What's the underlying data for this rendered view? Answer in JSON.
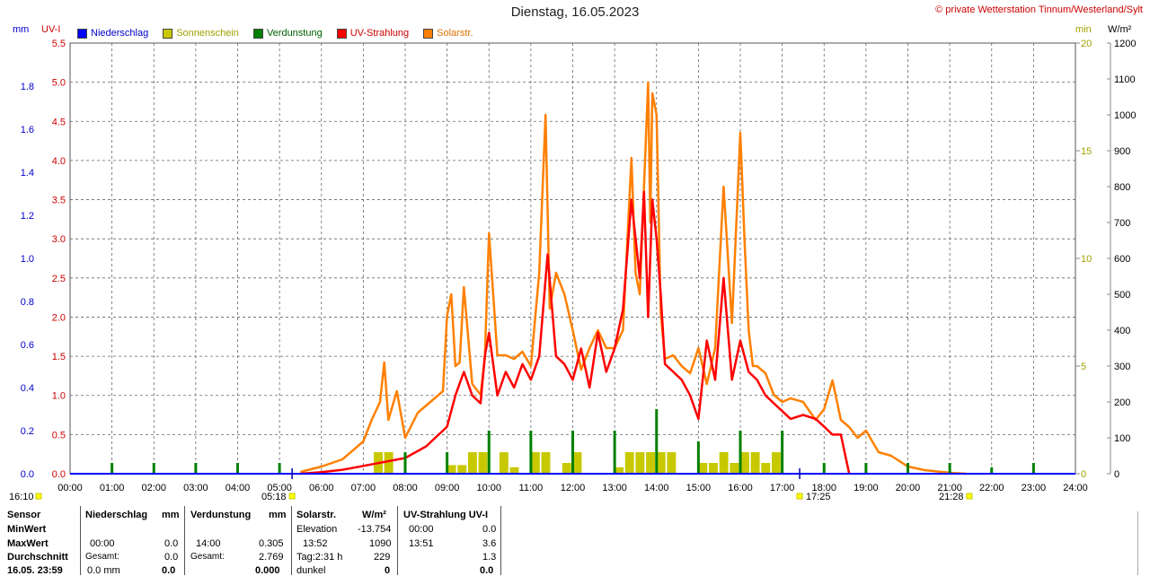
{
  "header": {
    "title": "Dienstag, 16.05.2023",
    "copyright": "© private Wetterstation Tinnum/Westerland/Sylt",
    "unit_mm": "mm",
    "unit_uvi": "UV-I",
    "unit_min": "min",
    "unit_wm2": "W/m²"
  },
  "legend": [
    {
      "label": "Niederschlag",
      "color": "#0000ff"
    },
    {
      "label": "Sonnenschein",
      "color": "#c8c800"
    },
    {
      "label": "Verdunstung",
      "color": "#008000"
    },
    {
      "label": "UV-Strahlung",
      "color": "#ff0000"
    },
    {
      "label": "Solarstr.",
      "color": "#ff8000"
    }
  ],
  "markers": {
    "start_time": "16:10",
    "sunrise": "05:18",
    "sunset": "17:25",
    "dusk_end": "21:28"
  },
  "chart_data": {
    "type": "line",
    "title": "Dienstag, 16.05.2023",
    "xlim": [
      "00:00",
      "24:00"
    ],
    "x_ticks": [
      "00:00",
      "01:00",
      "02:00",
      "03:00",
      "04:00",
      "05:00",
      "06:00",
      "07:00",
      "08:00",
      "09:00",
      "10:00",
      "11:00",
      "12:00",
      "13:00",
      "14:00",
      "15:00",
      "16:00",
      "17:00",
      "18:00",
      "19:00",
      "20:00",
      "21:00",
      "22:00",
      "23:00",
      "24:00"
    ],
    "axes": {
      "mm": {
        "label": "mm",
        "ylim": [
          0,
          2.0
        ],
        "ticks": [
          "0.0",
          "0.2",
          "0.4",
          "0.6",
          "0.8",
          "1.0",
          "1.2",
          "1.4",
          "1.6",
          "1.8"
        ],
        "color": "#0000cc"
      },
      "uvi": {
        "label": "UV-I",
        "ylim": [
          0,
          5.5
        ],
        "ticks": [
          "0.0",
          "0.5",
          "1.0",
          "1.5",
          "2.0",
          "2.5",
          "3.0",
          "3.5",
          "4.0",
          "4.5",
          "5.0",
          "5.5"
        ],
        "color": "#cc0000"
      },
      "min": {
        "label": "min",
        "ylim": [
          0,
          20
        ],
        "ticks": [
          "0",
          "5",
          "10",
          "15",
          "20"
        ],
        "color": "#a0a000"
      },
      "wm2": {
        "label": "W/m²",
        "ylim": [
          0,
          1200
        ],
        "ticks": [
          "0",
          "100",
          "200",
          "300",
          "400",
          "500",
          "600",
          "700",
          "800",
          "900",
          "1000",
          "1100",
          "1200"
        ],
        "color": "#000000"
      }
    },
    "series": [
      {
        "name": "Solarstr.",
        "axis": "wm2",
        "color": "#ff8000",
        "x": [
          5.5,
          6.0,
          6.5,
          7.0,
          7.2,
          7.4,
          7.5,
          7.6,
          7.8,
          8.0,
          8.3,
          8.6,
          8.9,
          9.0,
          9.1,
          9.2,
          9.3,
          9.4,
          9.6,
          9.8,
          9.9,
          10.0,
          10.2,
          10.4,
          10.6,
          10.8,
          11.0,
          11.2,
          11.35,
          11.45,
          11.6,
          11.8,
          12.0,
          12.2,
          12.4,
          12.6,
          12.8,
          13.0,
          13.2,
          13.4,
          13.5,
          13.6,
          13.8,
          13.85,
          13.9,
          14.0,
          14.1,
          14.2,
          14.4,
          14.6,
          14.8,
          15.0,
          15.2,
          15.4,
          15.6,
          15.8,
          16.0,
          16.1,
          16.2,
          16.3,
          16.4,
          16.6,
          16.8,
          17.0,
          17.2,
          17.5,
          17.8,
          18.0,
          18.2,
          18.4,
          18.6,
          18.8,
          19.0,
          19.3,
          19.6,
          20.0,
          20.4,
          20.8,
          21.1,
          21.4
        ],
        "y": [
          5,
          20,
          40,
          90,
          150,
          200,
          310,
          150,
          230,
          100,
          170,
          200,
          230,
          440,
          500,
          300,
          310,
          520,
          250,
          220,
          320,
          670,
          330,
          330,
          320,
          340,
          300,
          560,
          1000,
          460,
          560,
          500,
          400,
          290,
          350,
          400,
          350,
          350,
          400,
          880,
          560,
          500,
          1090,
          700,
          1060,
          1000,
          450,
          320,
          330,
          300,
          280,
          350,
          250,
          350,
          800,
          420,
          950,
          650,
          400,
          300,
          300,
          280,
          220,
          200,
          210,
          200,
          150,
          180,
          260,
          150,
          130,
          100,
          120,
          60,
          50,
          20,
          10,
          5,
          2,
          0
        ]
      },
      {
        "name": "UV-Strahlung",
        "axis": "uvi",
        "color": "#ff0000",
        "x": [
          5.5,
          6.0,
          6.5,
          7.0,
          7.5,
          8.0,
          8.5,
          9.0,
          9.2,
          9.4,
          9.6,
          9.8,
          9.9,
          10.0,
          10.2,
          10.4,
          10.6,
          10.8,
          11.0,
          11.2,
          11.4,
          11.6,
          11.8,
          12.0,
          12.2,
          12.4,
          12.6,
          12.8,
          13.0,
          13.2,
          13.4,
          13.6,
          13.7,
          13.8,
          13.9,
          14.0,
          14.1,
          14.2,
          14.4,
          14.6,
          14.8,
          15.0,
          15.2,
          15.4,
          15.6,
          15.8,
          16.0,
          16.2,
          16.4,
          16.6,
          16.8,
          17.0,
          17.2,
          17.5,
          17.8,
          18.0,
          18.2,
          18.4,
          18.6
        ],
        "y": [
          0,
          0.02,
          0.05,
          0.1,
          0.15,
          0.2,
          0.35,
          0.6,
          1.0,
          1.3,
          1.0,
          0.9,
          1.5,
          1.8,
          1.0,
          1.3,
          1.1,
          1.4,
          1.2,
          1.5,
          2.8,
          1.5,
          1.4,
          1.2,
          1.6,
          1.1,
          1.8,
          1.3,
          1.6,
          2.1,
          3.5,
          2.5,
          3.6,
          2.0,
          3.5,
          3.0,
          2.3,
          1.4,
          1.3,
          1.2,
          1.0,
          0.7,
          1.7,
          1.2,
          2.5,
          1.2,
          1.7,
          1.3,
          1.2,
          1.0,
          0.9,
          0.8,
          0.7,
          0.75,
          0.7,
          0.6,
          0.5,
          0.5,
          0.0
        ]
      }
    ],
    "bars_sunshine_min": {
      "axis": "min",
      "color": "#c8c800",
      "x": [
        "07:15",
        "07:30",
        "09:00",
        "09:15",
        "09:30",
        "09:45",
        "10:15",
        "10:30",
        "11:00",
        "11:15",
        "11:45",
        "12:00",
        "13:00",
        "13:15",
        "13:30",
        "13:45",
        "14:00",
        "14:15",
        "15:00",
        "15:15",
        "15:30",
        "15:45",
        "16:00",
        "16:15",
        "16:30",
        "16:45"
      ],
      "values": [
        1,
        1,
        0.4,
        0.4,
        1,
        1,
        1,
        0.3,
        1,
        1,
        0.5,
        1,
        0.3,
        1,
        1,
        1,
        1,
        1,
        0.5,
        0.5,
        1,
        0.5,
        1,
        1,
        0.5,
        1
      ]
    },
    "bars_verdunstung_mm": {
      "axis": "mm",
      "color": "#008000",
      "x": [
        "01:00",
        "02:00",
        "03:00",
        "04:00",
        "05:00",
        "08:00",
        "09:00",
        "10:00",
        "11:00",
        "12:00",
        "13:00",
        "14:00",
        "15:00",
        "16:00",
        "17:00",
        "18:00",
        "19:00",
        "20:00",
        "21:00",
        "22:00",
        "23:00"
      ],
      "values": [
        0.05,
        0.05,
        0.05,
        0.05,
        0.05,
        0.1,
        0.1,
        0.2,
        0.2,
        0.2,
        0.2,
        0.3,
        0.15,
        0.2,
        0.2,
        0.05,
        0.05,
        0.05,
        0.05,
        0.03,
        0.05
      ]
    }
  },
  "stats": {
    "col1_header": "Sensor",
    "row_labels": [
      "MinWert",
      "MaxWert",
      "Durchschnitt",
      "16.05. 23:59"
    ],
    "niederschlag": {
      "header": "Niederschlag",
      "unit": "mm",
      "max_time": "00:00",
      "max_val": "0.0",
      "avg_label": "Gesamt:",
      "avg_val": "0.0",
      "last_val": "0.0 mm",
      "last_sum": "0.0"
    },
    "verdunstung": {
      "header": "Verdunstung",
      "unit": "mm",
      "max_time": "14:00",
      "max_val": "0.305",
      "avg_label": "Gesamt:",
      "avg_val": "2.769",
      "last_sum": "0.000"
    },
    "solar": {
      "header": "Solarstr.",
      "unit": "W/m²",
      "min_label": "Elevation",
      "min_val": "-13.754",
      "max_time": "13:52",
      "max_val": "1090",
      "avg_label": "Tag:2:31 h",
      "avg_val": "229",
      "last_label": "dunkel",
      "last_val": "0"
    },
    "uv": {
      "header": "UV-Strahlung UV-I",
      "min_time": "00:00",
      "min_val": "0.0",
      "max_time": "13:51",
      "max_val": "3.6",
      "avg_val": "1.3",
      "last_val": "0.0"
    }
  }
}
